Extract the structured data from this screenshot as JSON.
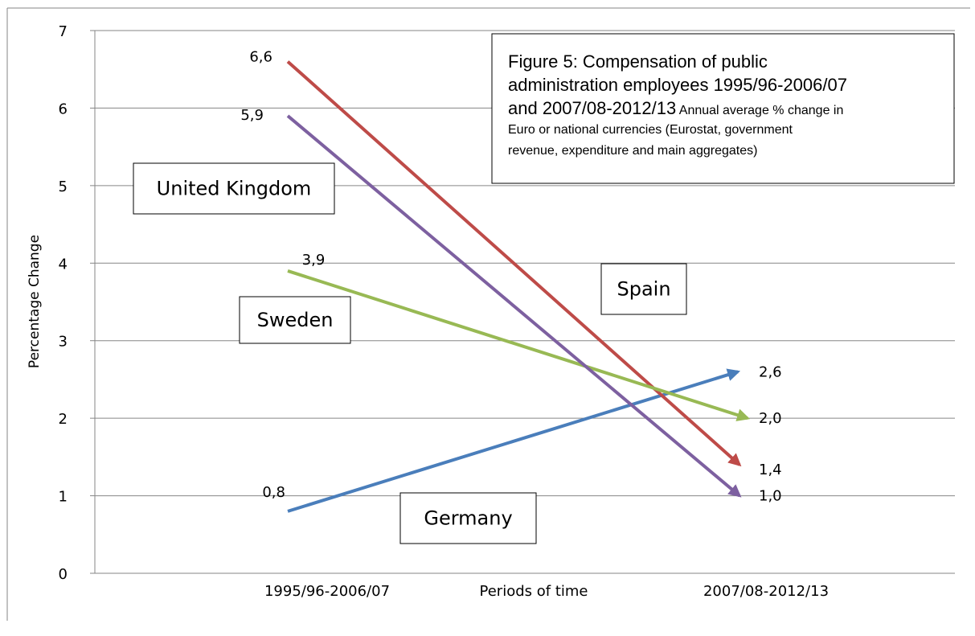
{
  "chart_data": {
    "type": "line",
    "title_lines": [
      {
        "main": "Figure 5: Compensation of public",
        "sub": ""
      },
      {
        "main": "administration employees 1995/96-2006/07",
        "sub": ""
      },
      {
        "main": "and 2007/08-2012/13",
        "sub": " Annual average % change in"
      },
      {
        "main": "",
        "sub": "Euro or national currencies (Eurostat, government"
      },
      {
        "main": "",
        "sub": "revenue, expenditure and main aggregates)"
      }
    ],
    "categories": [
      "1995/96-2006/07",
      "2007/08-2012/13"
    ],
    "xlabel": "Periods of time",
    "ylabel": "Percentage Change",
    "ylim": [
      0,
      7
    ],
    "yticks": [
      "0",
      "1",
      "2",
      "3",
      "4",
      "5",
      "6",
      "7"
    ],
    "grid": true,
    "series": [
      {
        "name": "Germany",
        "values": [
          0.8,
          2.6
        ],
        "labels": [
          "0,8",
          "2,6"
        ],
        "color": "#4a7ebb"
      },
      {
        "name": "Spain",
        "values": [
          6.6,
          1.4
        ],
        "labels": [
          "6,6",
          "1,4"
        ],
        "color": "#be4b48"
      },
      {
        "name": "Sweden",
        "values": [
          3.9,
          2.0
        ],
        "labels": [
          "3,9",
          "2,0"
        ],
        "color": "#98b954"
      },
      {
        "name": "United Kingdom",
        "values": [
          5.9,
          1.0
        ],
        "labels": [
          "5,9",
          "1,0"
        ],
        "color": "#7d60a0"
      }
    ]
  }
}
